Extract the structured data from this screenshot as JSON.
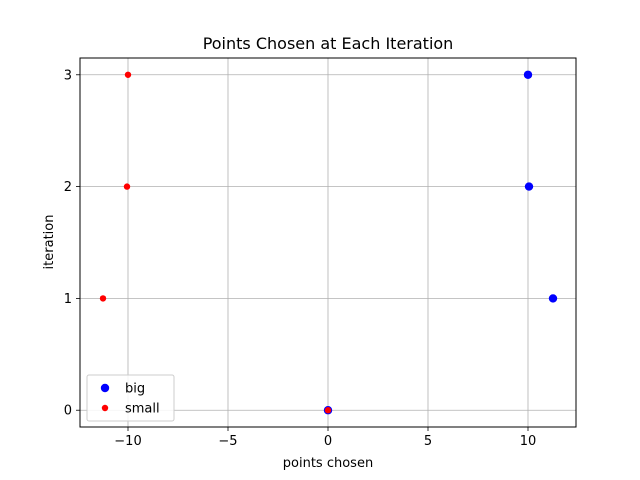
{
  "chart_data": {
    "type": "scatter",
    "title": "Points Chosen at Each Iteration",
    "xlabel": "points chosen",
    "ylabel": "iteration",
    "xlim": [
      -12.4,
      12.4
    ],
    "ylim": [
      -0.15,
      3.15
    ],
    "xticks": [
      -10,
      -5,
      0,
      5,
      10
    ],
    "xtick_labels": [
      "−10",
      "−5",
      "0",
      "5",
      "10"
    ],
    "yticks": [
      0,
      1,
      2,
      3
    ],
    "ytick_labels": [
      "0",
      "1",
      "2",
      "3"
    ],
    "grid": true,
    "legend_position": "lower-left",
    "series": [
      {
        "name": "big",
        "color": "#0000ff",
        "marker_size": "large",
        "points": [
          {
            "x": 0,
            "y": 0
          },
          {
            "x": 11.25,
            "y": 1
          },
          {
            "x": 10.05,
            "y": 2
          },
          {
            "x": 10.0,
            "y": 3
          }
        ]
      },
      {
        "name": "small",
        "color": "#ff0000",
        "marker_size": "small",
        "points": [
          {
            "x": 0,
            "y": 0
          },
          {
            "x": -11.25,
            "y": 1
          },
          {
            "x": -10.05,
            "y": 2
          },
          {
            "x": -10.0,
            "y": 3
          }
        ]
      }
    ]
  }
}
